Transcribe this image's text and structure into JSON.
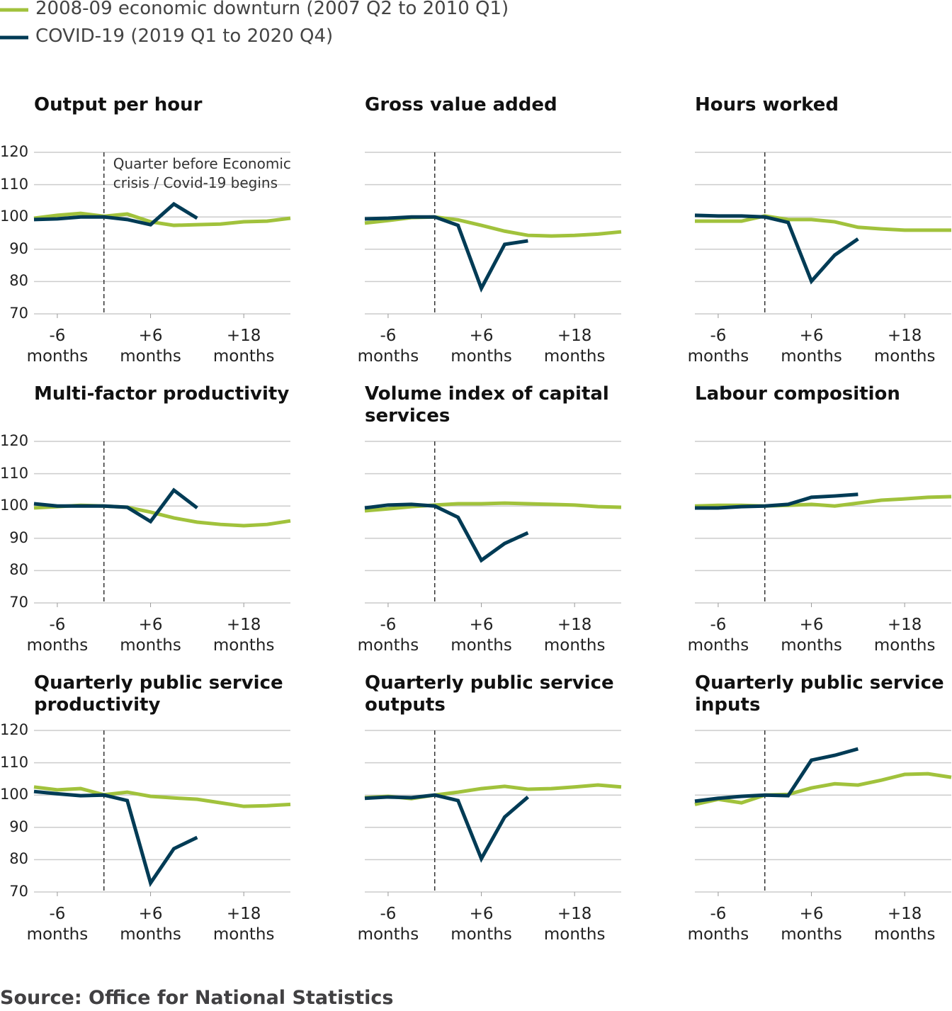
{
  "legend": [
    {
      "name": "2008-09 economic downturn (2007 Q2 to 2010 Q1)",
      "color": "#a1c23c"
    },
    {
      "name": "COVID-19 (2019 Q1 to 2020 Q4)",
      "color": "#003b55"
    }
  ],
  "source": "Source: Office for National Statistics",
  "chart_data": [
    {
      "type": "line",
      "title": "Output per hour",
      "annotation": "Quarter before Economic crisis / Covid-19 begins",
      "vline": 0,
      "grid": true,
      "x": [
        -9,
        -6,
        -3,
        0,
        3,
        6,
        9,
        12,
        15,
        18,
        21,
        24
      ],
      "xlim": [
        -9,
        24
      ],
      "xticks": [
        {
          "value": -6,
          "label": "-6 months"
        },
        {
          "value": 6,
          "label": "+6 months"
        },
        {
          "value": 18,
          "label": "+18 months"
        }
      ],
      "ylim": [
        70,
        120
      ],
      "yticks": [
        70,
        80,
        90,
        100,
        110,
        120
      ],
      "series": [
        {
          "values": [
            99.6,
            100.5,
            101.1,
            100.2,
            100.9,
            98.5,
            97.4,
            97.6,
            97.8,
            98.5,
            98.7,
            99.6
          ]
        },
        {
          "values": [
            99.2,
            99.4,
            100.0,
            100.0,
            99.2,
            97.6,
            104.0,
            99.6,
            null,
            null,
            null,
            null
          ]
        }
      ]
    },
    {
      "type": "line",
      "title": "Gross value added",
      "vline": 0,
      "grid": true,
      "x": [
        -9,
        -6,
        -3,
        0,
        3,
        6,
        9,
        12,
        15,
        18,
        21,
        24
      ],
      "xlim": [
        -9,
        24
      ],
      "xticks": [
        {
          "value": -6,
          "label": "-6 months"
        },
        {
          "value": 6,
          "label": "+6 months"
        },
        {
          "value": 18,
          "label": "+18 months"
        }
      ],
      "ylim": [
        70,
        120
      ],
      "yticks": [
        70,
        80,
        90,
        100,
        110,
        120
      ],
      "series": [
        {
          "values": [
            98.1,
            98.9,
            99.8,
            100.0,
            99.1,
            97.4,
            95.6,
            94.3,
            94.1,
            94.3,
            94.7,
            95.4
          ]
        },
        {
          "values": [
            99.4,
            99.6,
            100.0,
            100.0,
            97.4,
            77.9,
            91.5,
            92.6,
            null,
            null,
            null,
            null
          ]
        }
      ]
    },
    {
      "type": "line",
      "title": "Hours worked",
      "vline": 0,
      "grid": true,
      "x": [
        -9,
        -6,
        -3,
        0,
        3,
        6,
        9,
        12,
        15,
        18,
        21,
        24
      ],
      "xlim": [
        -9,
        24
      ],
      "xticks": [
        {
          "value": -6,
          "label": "-6 months"
        },
        {
          "value": 6,
          "label": "+6 months"
        },
        {
          "value": 18,
          "label": "+18 months"
        }
      ],
      "ylim": [
        70,
        120
      ],
      "yticks": [
        70,
        80,
        90,
        100,
        110,
        120
      ],
      "series": [
        {
          "values": [
            98.7,
            98.7,
            98.7,
            100.3,
            99.2,
            99.2,
            98.5,
            96.8,
            96.3,
            95.9,
            95.9,
            95.9
          ]
        },
        {
          "values": [
            100.5,
            100.3,
            100.3,
            100.0,
            98.3,
            80.1,
            88.2,
            93.2,
            null,
            null,
            null,
            null
          ]
        }
      ]
    },
    {
      "type": "line",
      "title": "Multi-factor productivity",
      "vline": 0,
      "grid": true,
      "x": [
        -9,
        -6,
        -3,
        0,
        3,
        6,
        9,
        12,
        15,
        18,
        21,
        24
      ],
      "xlim": [
        -9,
        24
      ],
      "xticks": [
        {
          "value": -6,
          "label": "-6 months"
        },
        {
          "value": 6,
          "label": "+6 months"
        },
        {
          "value": 18,
          "label": "+18 months"
        }
      ],
      "ylim": [
        70,
        120
      ],
      "yticks": [
        70,
        80,
        90,
        100,
        110,
        120
      ],
      "series": [
        {
          "values": [
            99.4,
            99.8,
            100.2,
            100.0,
            99.6,
            98.1,
            96.3,
            95.0,
            94.3,
            93.9,
            94.3,
            95.4
          ]
        },
        {
          "values": [
            100.7,
            100.0,
            100.0,
            100.0,
            99.6,
            95.2,
            104.9,
            99.4,
            null,
            null,
            null,
            null
          ]
        }
      ]
    },
    {
      "type": "line",
      "title": "Volume index of capital services",
      "vline": 0,
      "grid": true,
      "x": [
        -9,
        -6,
        -3,
        0,
        3,
        6,
        9,
        12,
        15,
        18,
        21,
        24
      ],
      "xlim": [
        -9,
        24
      ],
      "xticks": [
        {
          "value": -6,
          "label": "-6 months"
        },
        {
          "value": 6,
          "label": "+6 months"
        },
        {
          "value": 18,
          "label": "+18 months"
        }
      ],
      "ylim": [
        70,
        120
      ],
      "yticks": [
        70,
        80,
        90,
        100,
        110,
        120
      ],
      "series": [
        {
          "values": [
            98.5,
            99.1,
            99.8,
            100.3,
            100.7,
            100.7,
            100.9,
            100.7,
            100.5,
            100.3,
            99.8,
            99.6
          ]
        },
        {
          "values": [
            99.4,
            100.3,
            100.5,
            100.0,
            96.5,
            83.2,
            88.4,
            91.7,
            null,
            null,
            null,
            null
          ]
        }
      ]
    },
    {
      "type": "line",
      "title": "Labour composition",
      "vline": 0,
      "grid": true,
      "x": [
        -9,
        -6,
        -3,
        0,
        3,
        6,
        9,
        12,
        15,
        18,
        21,
        24
      ],
      "xlim": [
        -9,
        24
      ],
      "xticks": [
        {
          "value": -6,
          "label": "-6 months"
        },
        {
          "value": 6,
          "label": "+6 months"
        },
        {
          "value": 18,
          "label": "+18 months"
        }
      ],
      "ylim": [
        70,
        120
      ],
      "yticks": [
        70,
        80,
        90,
        100,
        110,
        120
      ],
      "series": [
        {
          "values": [
            100.0,
            100.2,
            100.2,
            100.0,
            100.2,
            100.5,
            100.0,
            100.9,
            101.8,
            102.2,
            102.7,
            102.9
          ]
        },
        {
          "values": [
            99.4,
            99.4,
            99.8,
            100.0,
            100.5,
            102.7,
            103.1,
            103.6,
            null,
            null,
            null,
            null
          ]
        }
      ]
    },
    {
      "type": "line",
      "title": "Quarterly public service productivity",
      "vline": 0,
      "grid": true,
      "x": [
        -9,
        -6,
        -3,
        0,
        3,
        6,
        9,
        12,
        15,
        18,
        21,
        24
      ],
      "xlim": [
        -9,
        24
      ],
      "xticks": [
        {
          "value": -6,
          "label": "-6 months"
        },
        {
          "value": 6,
          "label": "+6 months"
        },
        {
          "value": 18,
          "label": "+18 months"
        }
      ],
      "ylim": [
        70,
        120
      ],
      "yticks": [
        70,
        80,
        90,
        100,
        110,
        120
      ],
      "series": [
        {
          "values": [
            102.5,
            101.6,
            102.0,
            100.1,
            100.9,
            99.6,
            99.1,
            98.7,
            97.6,
            96.5,
            96.7,
            97.1
          ]
        },
        {
          "values": [
            101.1,
            100.4,
            99.8,
            100.0,
            98.3,
            72.8,
            83.4,
            86.9,
            null,
            null,
            null,
            null
          ]
        }
      ]
    },
    {
      "type": "line",
      "title": "Quarterly public service outputs",
      "vline": 0,
      "grid": true,
      "x": [
        -9,
        -6,
        -3,
        0,
        3,
        6,
        9,
        12,
        15,
        18,
        21,
        24
      ],
      "xlim": [
        -9,
        24
      ],
      "xticks": [
        {
          "value": -6,
          "label": "-6 months"
        },
        {
          "value": 6,
          "label": "+6 months"
        },
        {
          "value": 18,
          "label": "+18 months"
        }
      ],
      "ylim": [
        70,
        120
      ],
      "yticks": [
        70,
        80,
        90,
        100,
        110,
        120
      ],
      "series": [
        {
          "values": [
            99.2,
            99.6,
            98.9,
            100.0,
            100.9,
            102.0,
            102.7,
            101.8,
            102.0,
            102.5,
            103.1,
            102.5
          ]
        },
        {
          "values": [
            99.0,
            99.4,
            99.2,
            100.0,
            98.3,
            80.3,
            93.2,
            99.4,
            null,
            null,
            null,
            null
          ]
        }
      ]
    },
    {
      "type": "line",
      "title": "Quarterly public service inputs",
      "vline": 0,
      "grid": true,
      "x": [
        -9,
        -6,
        -3,
        0,
        3,
        6,
        9,
        12,
        15,
        18,
        21,
        24
      ],
      "xlim": [
        -9,
        24
      ],
      "xticks": [
        {
          "value": -6,
          "label": "-6 months"
        },
        {
          "value": 6,
          "label": "+6 months"
        },
        {
          "value": 18,
          "label": "+18 months"
        }
      ],
      "ylim": [
        70,
        120
      ],
      "yticks": [
        70,
        80,
        90,
        100,
        110,
        120
      ],
      "series": [
        {
          "values": [
            97.1,
            98.7,
            97.6,
            100.0,
            100.2,
            102.2,
            103.5,
            103.1,
            104.6,
            106.4,
            106.6,
            105.5
          ]
        },
        {
          "values": [
            98.1,
            99.0,
            99.6,
            100.0,
            99.8,
            110.8,
            112.3,
            114.3,
            null,
            null,
            null,
            null
          ]
        }
      ]
    }
  ]
}
